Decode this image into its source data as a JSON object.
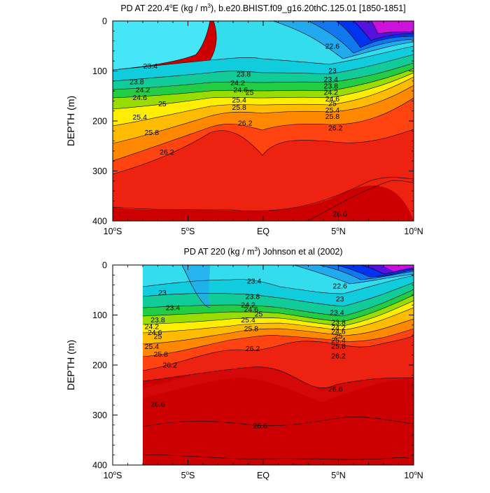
{
  "chart_data": [
    {
      "type": "heatmap",
      "title": "PD AT 220.4°E (kg / m³), b.e20.BHIST.f09_g16.20thC.125.01 [1850-1851]",
      "title_parts": {
        "prefix": "PD AT 220.4",
        "deg": "o",
        "suffix": "E (kg / m",
        "sup": "3",
        "tail": "), b.e20.BHIST.f09_g16.20thC.125.01 [1850-1851]"
      },
      "ylabel": "DEPTH (m)",
      "xlim": [
        -10,
        10
      ],
      "ylim": [
        0,
        400
      ],
      "x_ticks": [
        {
          "value": -10,
          "label": "10",
          "sup": "o",
          "suffix": "S"
        },
        {
          "value": -5,
          "label": "5",
          "sup": "o",
          "suffix": "S"
        },
        {
          "value": 0,
          "label": "EQ",
          "sup": "",
          "suffix": ""
        },
        {
          "value": 5,
          "label": "5",
          "sup": "o",
          "suffix": "N"
        },
        {
          "value": 10,
          "label": "10",
          "sup": "o",
          "suffix": "N"
        }
      ],
      "y_ticks": [
        0,
        100,
        200,
        300,
        400
      ],
      "data_start_lat": -10,
      "contour_labels": [
        {
          "text": "23.4",
          "lat": -7.5,
          "depth": 90
        },
        {
          "text": "23.8",
          "lat": -8.4,
          "depth": 122
        },
        {
          "text": "24.2",
          "lat": -8.0,
          "depth": 138
        },
        {
          "text": "24.6",
          "lat": -8.2,
          "depth": 153
        },
        {
          "text": "25",
          "lat": -6.7,
          "depth": 166
        },
        {
          "text": "25.4",
          "lat": -8.2,
          "depth": 192
        },
        {
          "text": "25.8",
          "lat": -7.4,
          "depth": 223
        },
        {
          "text": "26.2",
          "lat": -6.4,
          "depth": 262
        },
        {
          "text": "23.8",
          "lat": -1.3,
          "depth": 106
        },
        {
          "text": "24.2",
          "lat": -1.7,
          "depth": 124
        },
        {
          "text": "24.6",
          "lat": -1.5,
          "depth": 138
        },
        {
          "text": "25",
          "lat": -0.9,
          "depth": 143
        },
        {
          "text": "25.4",
          "lat": -1.6,
          "depth": 158
        },
        {
          "text": "25.8",
          "lat": -1.6,
          "depth": 173
        },
        {
          "text": "26.2",
          "lat": -1.2,
          "depth": 204
        },
        {
          "text": "22.6",
          "lat": 4.6,
          "depth": 50
        },
        {
          "text": "23",
          "lat": 4.6,
          "depth": 99
        },
        {
          "text": "23.4",
          "lat": 4.5,
          "depth": 117
        },
        {
          "text": "23.8",
          "lat": 4.5,
          "depth": 130
        },
        {
          "text": "24.2",
          "lat": 4.5,
          "depth": 143
        },
        {
          "text": "24.6",
          "lat": 4.6,
          "depth": 156
        },
        {
          "text": "25",
          "lat": 4.6,
          "depth": 165
        },
        {
          "text": "25.4",
          "lat": 4.6,
          "depth": 178
        },
        {
          "text": "25.8",
          "lat": 4.6,
          "depth": 191
        },
        {
          "text": "26.2",
          "lat": 4.8,
          "depth": 214
        },
        {
          "text": "26.6",
          "lat": 5.1,
          "depth": 386
        }
      ]
    },
    {
      "type": "heatmap",
      "title": "PD AT 220 (kg / m³) Johnson et al (2002)",
      "title_parts": {
        "prefix": "PD AT 220 (kg / m",
        "sup": "3",
        "tail": ") Johnson et al (2002)"
      },
      "ylabel": "DEPTH (m)",
      "xlim": [
        -10,
        10
      ],
      "ylim": [
        0,
        400
      ],
      "x_ticks": [
        {
          "value": -10,
          "label": "10",
          "sup": "o",
          "suffix": "S"
        },
        {
          "value": -5,
          "label": "5",
          "sup": "o",
          "suffix": "S"
        },
        {
          "value": 0,
          "label": "EQ",
          "sup": "",
          "suffix": ""
        },
        {
          "value": 5,
          "label": "5",
          "sup": "o",
          "suffix": "N"
        },
        {
          "value": 10,
          "label": "10",
          "sup": "o",
          "suffix": "N"
        }
      ],
      "y_ticks": [
        0,
        100,
        200,
        300,
        400
      ],
      "data_start_lat": -8,
      "contour_labels": [
        {
          "text": "23",
          "lat": -6.7,
          "depth": 55
        },
        {
          "text": "23.4",
          "lat": -6.0,
          "depth": 85
        },
        {
          "text": "23.8",
          "lat": -7.0,
          "depth": 110
        },
        {
          "text": "24.2",
          "lat": -7.4,
          "depth": 123
        },
        {
          "text": "24.6",
          "lat": -7.2,
          "depth": 135
        },
        {
          "text": "25",
          "lat": -7.0,
          "depth": 143
        },
        {
          "text": "25.4",
          "lat": -7.4,
          "depth": 163
        },
        {
          "text": "25.8",
          "lat": -6.8,
          "depth": 178
        },
        {
          "text": "26.2",
          "lat": -6.2,
          "depth": 200
        },
        {
          "text": "26.6",
          "lat": -7.0,
          "depth": 278
        },
        {
          "text": "23.4",
          "lat": -0.6,
          "depth": 32
        },
        {
          "text": "23.8",
          "lat": -0.7,
          "depth": 63
        },
        {
          "text": "24.2",
          "lat": -1.0,
          "depth": 80
        },
        {
          "text": "24.6",
          "lat": -0.8,
          "depth": 89
        },
        {
          "text": "25",
          "lat": -0.3,
          "depth": 98
        },
        {
          "text": "25.4",
          "lat": -1.0,
          "depth": 110
        },
        {
          "text": "25.8",
          "lat": -0.8,
          "depth": 127
        },
        {
          "text": "26.2",
          "lat": -0.7,
          "depth": 167
        },
        {
          "text": "26.6",
          "lat": -0.2,
          "depth": 322
        },
        {
          "text": "22.6",
          "lat": 5.1,
          "depth": 42
        },
        {
          "text": "23",
          "lat": 5.1,
          "depth": 68
        },
        {
          "text": "23.4",
          "lat": 4.9,
          "depth": 95
        },
        {
          "text": "23.8",
          "lat": 5.0,
          "depth": 115
        },
        {
          "text": "24.2",
          "lat": 5.0,
          "depth": 125
        },
        {
          "text": "24.6",
          "lat": 5.0,
          "depth": 133
        },
        {
          "text": "25",
          "lat": 5.0,
          "depth": 142
        },
        {
          "text": "25.4",
          "lat": 5.0,
          "depth": 150
        },
        {
          "text": "25.8",
          "lat": 5.0,
          "depth": 162
        },
        {
          "text": "26.2",
          "lat": 5.0,
          "depth": 182
        },
        {
          "text": "26.6",
          "lat": 4.8,
          "depth": 248
        }
      ]
    }
  ]
}
